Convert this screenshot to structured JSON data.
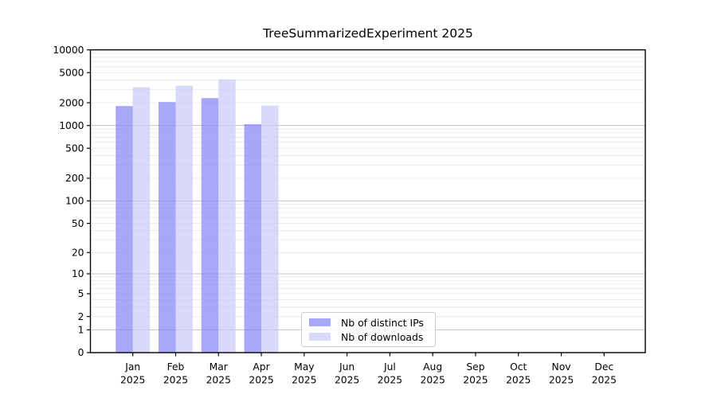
{
  "chart_data": {
    "type": "bar",
    "title": "TreeSummarizedExperiment 2025",
    "categories": [
      "Jan",
      "Feb",
      "Mar",
      "Apr",
      "May",
      "Jun",
      "Jul",
      "Aug",
      "Sep",
      "Oct",
      "Nov",
      "Dec"
    ],
    "category_year": "2025",
    "series": [
      {
        "name": "Nb of distinct IPs",
        "color": "#8383f8",
        "fill_opacity": 0.7,
        "values": [
          1810,
          2040,
          2300,
          1040,
          null,
          null,
          null,
          null,
          null,
          null,
          null,
          null
        ]
      },
      {
        "name": "Nb of downloads",
        "color": "#c9c9f9",
        "fill_opacity": 0.7,
        "values": [
          3200,
          3360,
          4050,
          1830,
          null,
          null,
          null,
          null,
          null,
          null,
          null,
          null
        ]
      }
    ],
    "xlabel": "",
    "ylabel": "",
    "y_ticks": [
      0,
      1,
      2,
      5,
      10,
      20,
      50,
      100,
      200,
      500,
      1000,
      2000,
      5000,
      10000
    ],
    "ylim": [
      0,
      10000
    ],
    "y_scale": "symlog",
    "grid": "major+minor horizontal",
    "legend_position": "lower center",
    "colors": {
      "major_gridline": "#c3c3c3",
      "minor_gridline": "#ececec",
      "spine": "#000000"
    }
  }
}
